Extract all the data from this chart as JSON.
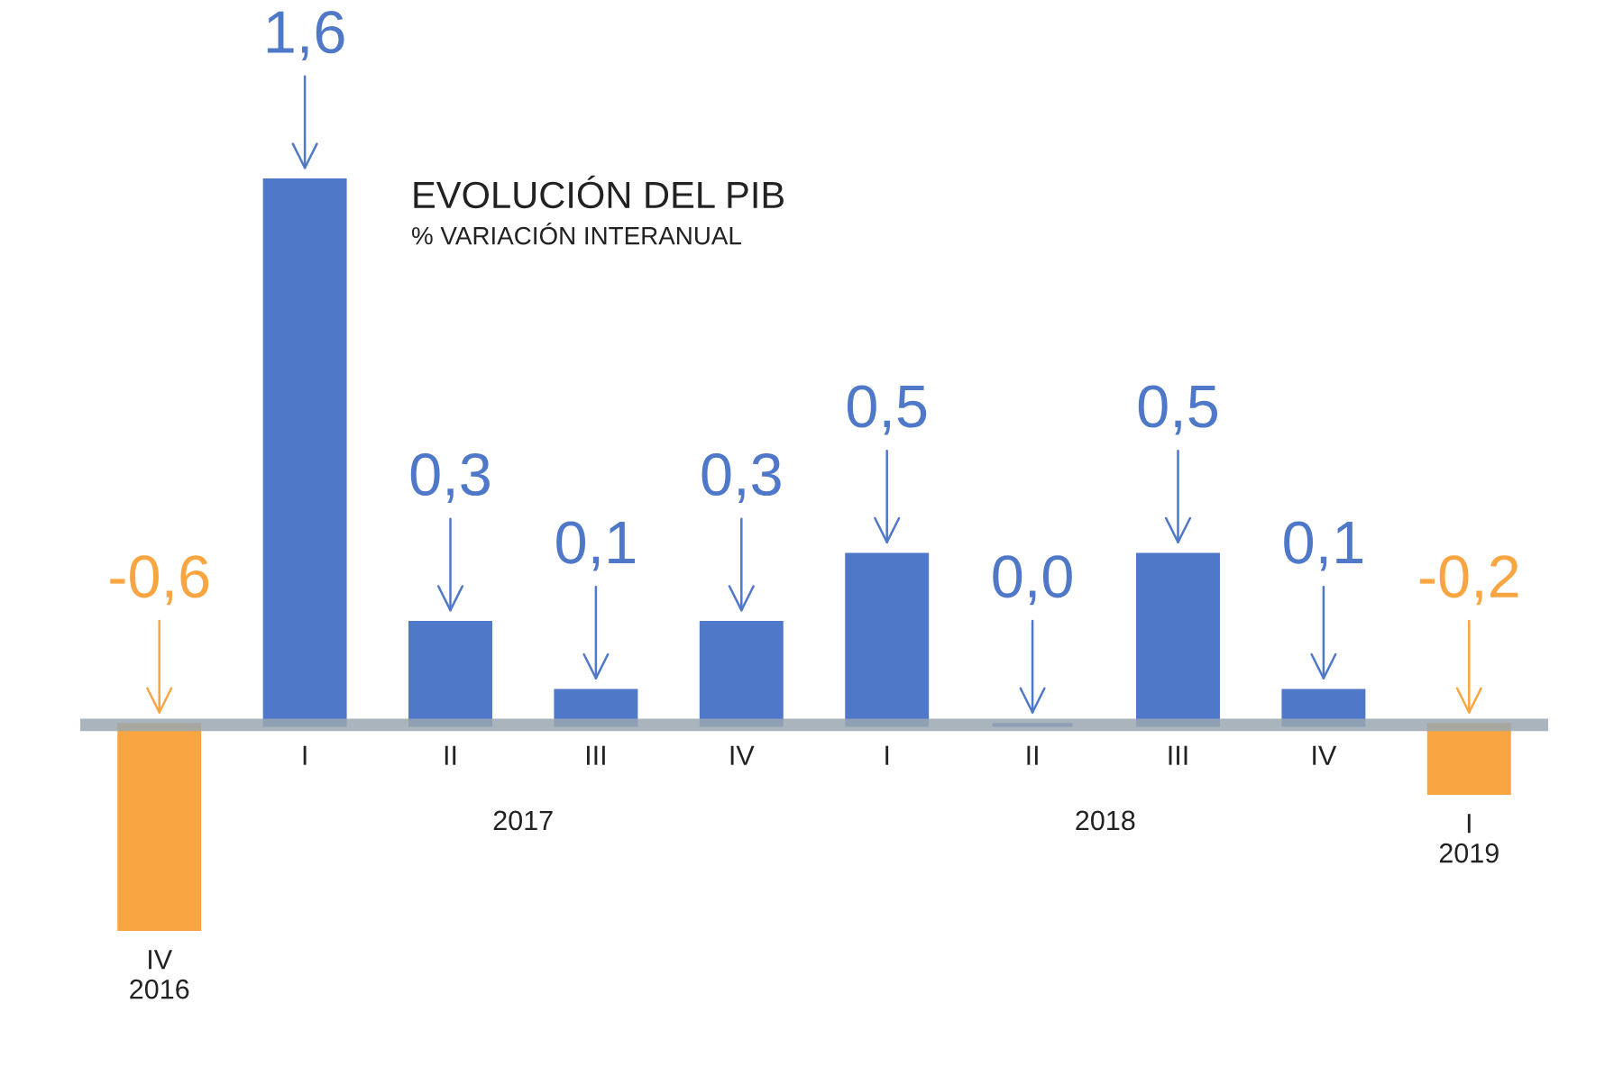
{
  "chart_data": {
    "type": "bar",
    "title": "EVOLUCIÓN DEL PIB",
    "subtitle": "% VARIACIÓN INTERANUAL",
    "categories": [
      "IV\n2016",
      "I",
      "II",
      "III",
      "IV",
      "I",
      "II",
      "III",
      "IV",
      "I\n2019"
    ],
    "values": [
      -0.6,
      1.6,
      0.3,
      0.1,
      0.3,
      0.5,
      0.0,
      0.5,
      0.1,
      -0.2
    ],
    "colors": [
      "#f9a541",
      "#5078c8",
      "#5078c8",
      "#5078c8",
      "#5078c8",
      "#5078c8",
      "#5078c8",
      "#5078c8",
      "#5078c8",
      "#f9a541"
    ],
    "value_labels": [
      "-0,6",
      "1,6",
      "0,3",
      "0,1",
      "0,3",
      "0,5",
      "0,0",
      "0,5",
      "0,1",
      "-0,2"
    ],
    "annotations": [
      "2017",
      "2018"
    ]
  }
}
